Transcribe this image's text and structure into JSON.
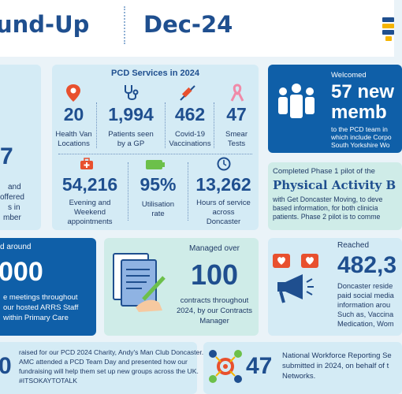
{
  "header": {
    "title": "und-Up",
    "date": "Dec-24"
  },
  "colors": {
    "navy": "#1f4f8f",
    "light_blue": "#d4ebf5",
    "dark_blue": "#0f5fa8",
    "light_green": "#cfece8",
    "logo": [
      "#1f4f8f",
      "#f5b400",
      "#1f4f8f",
      "#f5b400"
    ]
  },
  "left_card": {
    "big": "7",
    "lines": [
      "and",
      "offered",
      "s in",
      "mber"
    ]
  },
  "services": {
    "title": "PCD Services in 2024",
    "stats": [
      {
        "icon": "map-pin-icon",
        "value": "20",
        "label": [
          "Health Van",
          "Locations"
        ]
      },
      {
        "icon": "stethoscope-icon",
        "value": "1,994",
        "label": [
          "Patients seen",
          "by a GP"
        ]
      },
      {
        "icon": "syringe-icon",
        "value": "462",
        "label": [
          "Covid-19",
          "Vaccinations"
        ]
      },
      {
        "icon": "ribbon-icon",
        "value": "47",
        "label": [
          "Smear",
          "Tests"
        ]
      }
    ],
    "stats2": [
      {
        "icon": "first-aid-kit-icon",
        "value": "54,216",
        "label": [
          "Evening and",
          "Weekend",
          "appointments"
        ]
      },
      {
        "icon": "battery-icon",
        "value": "95%",
        "label": [
          "Utilisation",
          "rate"
        ]
      },
      {
        "icon": "clock-icon",
        "value": "13,262",
        "label": [
          "Hours of service",
          "across",
          "Doncaster"
        ]
      }
    ]
  },
  "welcomed": {
    "label": "Welcomed",
    "big": "57 new",
    "big2": "memb",
    "lines": [
      "to the PCD team in",
      "which include Corpo",
      "South Yorkshire Wo"
    ]
  },
  "physical": {
    "intro": "Completed Phase 1 pilot of the",
    "title": "Physical Activity B",
    "lines": [
      "with Get Doncaster Moving, to deve",
      "based information, for both clinicia",
      "patients. Phase 2 pilot is to comme"
    ]
  },
  "meetings": {
    "lead": "d around",
    "big": "000",
    "lines": [
      "e meetings throughout",
      "our hosted ARRS Staff",
      "within Primary Care"
    ]
  },
  "contracts": {
    "lead": "Managed over",
    "big": "100",
    "lines": [
      "contracts throughout",
      "2024, by our Contracts",
      "Manager"
    ]
  },
  "reached": {
    "label": "Reached",
    "big": "482,3",
    "lines": [
      "Doncaster reside",
      "paid social media",
      "information arou",
      "Such as, Vaccina",
      "Medication, Wom"
    ]
  },
  "charity": {
    "big": "0",
    "lines": [
      "raised for our PCD 2024 Charity, Andy's Man Club Doncaster.",
      "AMC attended a PCD Team Day and presented how our",
      "fundraising will help them set up new groups across the UK.",
      "#ITSOKAYTOTALK"
    ]
  },
  "workforce": {
    "big": "47",
    "lines": [
      "National Workforce Reporting Se",
      "submitted in 2024, on behalf of t",
      "Networks."
    ]
  }
}
